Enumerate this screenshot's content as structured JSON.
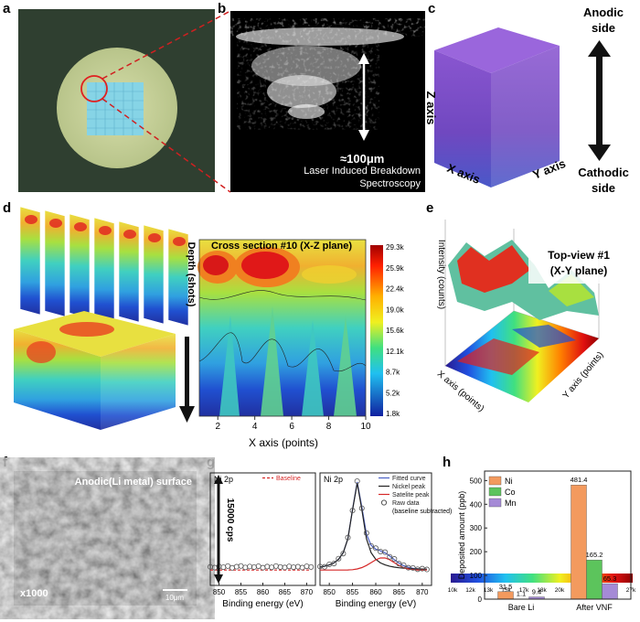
{
  "panel_labels": [
    "a",
    "b",
    "c",
    "d",
    "e",
    "f",
    "g",
    "h"
  ],
  "b": {
    "scale": "≈100μm",
    "caption": [
      "Laser Induced Breakdown",
      "Spectroscopy"
    ]
  },
  "c": {
    "anodic": [
      "Anodic",
      "side"
    ],
    "cathodic": [
      "Cathodic",
      "side"
    ],
    "z_axis": "Z axis",
    "x_axis": "X axis",
    "y_axis": "Y axis"
  },
  "d": {
    "title": "Cross section #10 (X-Z plane)",
    "ylabel": "Depth (shots)",
    "xlabel": "X axis (points)",
    "xlim": [
      1,
      10
    ],
    "xticks": [
      2,
      4,
      6,
      8,
      10
    ],
    "colorbar": [
      "29.3k",
      "25.9k",
      "22.4k",
      "19.0k",
      "15.6k",
      "12.1k",
      "8.7k",
      "5.2k",
      "1.8k"
    ]
  },
  "e": {
    "title": [
      "Top-view #1",
      "(X-Y plane)"
    ],
    "zlabel": "Intensity (counts)",
    "xlabel": "X axis (points)",
    "ylabel": "Y axis (points)",
    "colorbar": [
      "10k",
      "12k",
      "13k",
      "15k",
      "17k",
      "18k",
      "20k",
      "22k",
      "24k",
      "25k",
      "27k"
    ]
  },
  "f": {
    "caption": "Anodic(Li metal) surface",
    "magnification": "x1000",
    "scale": "10μm"
  },
  "chart_data": [
    {
      "type": "line",
      "title": "Ni 2p",
      "xlabel": "Binding energy (eV)",
      "scale_label": "15000 cps",
      "x": [
        848,
        849,
        850,
        851,
        852,
        853,
        854,
        855,
        856,
        857,
        858,
        859,
        860,
        861,
        862,
        863,
        864,
        865,
        866,
        867,
        868,
        869,
        870,
        871
      ],
      "xlim": [
        848,
        872
      ],
      "xticks": [
        850,
        855,
        860,
        865,
        870
      ],
      "ylim": [
        -15,
        95
      ],
      "series": [
        {
          "name": "Baseline",
          "color": "#d62828",
          "dash": true,
          "values": [
            0,
            0,
            0,
            0,
            0,
            0,
            0,
            0,
            0,
            0,
            0,
            0,
            0,
            0,
            0,
            0,
            0,
            0,
            0,
            0,
            0,
            0,
            0,
            0
          ]
        },
        {
          "color": "#555555",
          "marker": "circle",
          "values": [
            3.1,
            2.4,
            3.6,
            2.8,
            3.9,
            2.2,
            3.3,
            4.0,
            2.6,
            3.5,
            2.9,
            3.8,
            2.3,
            3.4,
            2.7,
            3.9,
            3.0,
            2.5,
            3.6,
            2.8,
            3.3,
            2.4,
            3.7,
            3.0
          ]
        }
      ]
    },
    {
      "type": "line",
      "title": "Ni 2p",
      "xlabel": "Binding energy (eV)",
      "legend_note": "(baseline subtracted)",
      "x": [
        848,
        849,
        850,
        851,
        852,
        853,
        854,
        855,
        856,
        857,
        858,
        859,
        860,
        861,
        862,
        863,
        864,
        865,
        866,
        867,
        868,
        869,
        870,
        871
      ],
      "xlim": [
        848,
        872
      ],
      "xticks": [
        850,
        855,
        860,
        865,
        870
      ],
      "ylim": [
        -15,
        95
      ],
      "series": [
        {
          "name": "Fitted curve",
          "color": "#4a5fc4",
          "values": [
            2.9,
            3.7,
            5.0,
            7.0,
            10.5,
            17.0,
            30.7,
            59.4,
            86.1,
            61.4,
            35.1,
            24.3,
            20.5,
            18.8,
            16.8,
            13.7,
            10.2,
            6.8,
            4.3,
            2.7,
            1.7,
            1.2,
            1.0,
            0.9
          ]
        },
        {
          "name": "Nickel peak",
          "color": "#222222",
          "values": [
            2.9,
            3.7,
            5.0,
            7.0,
            10.5,
            17.0,
            30.6,
            59.0,
            85.0,
            59.0,
            30.6,
            17.0,
            10.5,
            7.0,
            5.0,
            3.7,
            2.9,
            2.3,
            1.9,
            1.6,
            1.3,
            1.1,
            1.0,
            0.9
          ]
        },
        {
          "name": "Satelite peak",
          "color": "#d62828",
          "values": [
            0,
            0,
            0,
            0,
            0,
            0,
            0.1,
            0.4,
            1.1,
            2.4,
            4.5,
            7.3,
            10.0,
            11.8,
            11.8,
            10.0,
            7.3,
            4.5,
            2.4,
            1.1,
            0.4,
            0.1,
            0,
            0
          ]
        },
        {
          "name": "Raw data",
          "color": "#555555",
          "marker": "circle",
          "values": [
            3.5,
            3.2,
            5.6,
            6.4,
            11.2,
            16.1,
            31.8,
            58.2,
            87.0,
            60.5,
            36.2,
            23.6,
            21.4,
            18.1,
            17.5,
            13.0,
            10.9,
            6.2,
            4.8,
            2.3,
            2.1,
            0.8,
            1.4,
            0.6
          ]
        }
      ]
    },
    {
      "type": "bar",
      "ylabel": "Deposited amount (ppb)",
      "categories": [
        "Bare Li",
        "After VNF"
      ],
      "ylim": [
        0,
        540
      ],
      "yticks": [
        0,
        100,
        200,
        300,
        400,
        500
      ],
      "series": [
        {
          "name": "Ni",
          "color": "#f39a5e",
          "values": [
            31.5,
            481.4
          ]
        },
        {
          "name": "Co",
          "color": "#5cc45c",
          "values": [
            1.1,
            165.2
          ]
        },
        {
          "name": "Mn",
          "color": "#a58ad6",
          "values": [
            9.4,
            65.3
          ]
        }
      ]
    }
  ]
}
